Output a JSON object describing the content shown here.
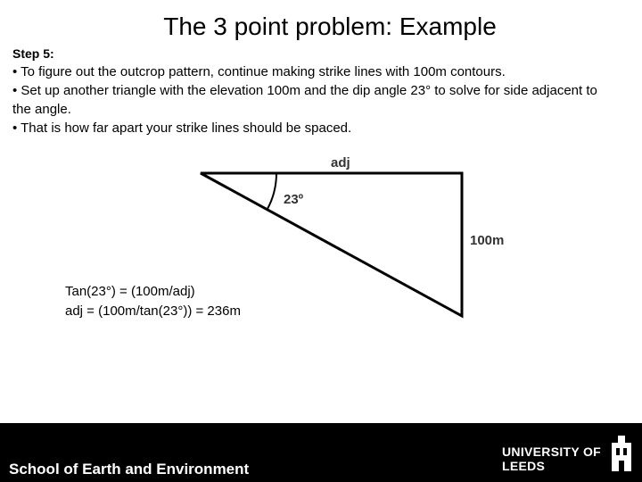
{
  "header": {
    "title": "The 3 point problem: Example"
  },
  "body": {
    "step_label": "Step 5:",
    "bullets": [
      "• To figure out the outcrop pattern, continue making strike lines with 100m contours.",
      "• Set up another triangle with the elevation 100m and the dip angle 23° to solve for side adjacent to the angle.",
      "• That is how far apart your strike lines should be spaced."
    ]
  },
  "diagram": {
    "top_label": "adj",
    "angle_label": "23º",
    "side_label": "100m"
  },
  "formula": {
    "lines": [
      "Tan(23°) = (100m/adj)",
      "adj = (100m/tan(23°)) = 236m"
    ]
  },
  "footer": {
    "school": "School of Earth and Environment",
    "university": "UNIVERSITY OF LEEDS"
  }
}
